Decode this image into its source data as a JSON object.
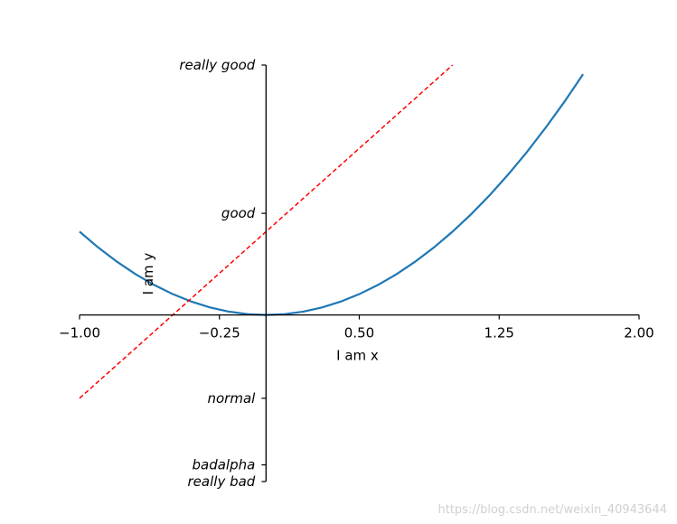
{
  "chart_data": {
    "type": "line",
    "xlim": [
      -1,
      2
    ],
    "ylim": [
      -2,
      3
    ],
    "x_ticks": [
      -1.0,
      -0.25,
      0.5,
      1.25,
      2.0
    ],
    "x_tick_labels": [
      "−1.00",
      "−0.25",
      "0.50",
      "1.25",
      "2.00"
    ],
    "y_ticks": [
      -2,
      -1.8,
      -1,
      1.22,
      3
    ],
    "y_tick_labels": [
      "really bad",
      "badalpha",
      "normal",
      "good",
      "really good"
    ],
    "xlabel": "I am x",
    "ylabel": "I am y",
    "spines": [
      "bottom-at-y0",
      "left-at-x0"
    ],
    "series": [
      {
        "color": "#1f77b4",
        "style": "solid",
        "x": [
          -1.0,
          -0.9,
          -0.8,
          -0.7,
          -0.6,
          -0.5,
          -0.4,
          -0.3,
          -0.2,
          -0.1,
          0.0,
          0.1,
          0.2,
          0.3,
          0.4,
          0.5,
          0.6,
          0.7,
          0.8,
          0.9,
          1.0,
          1.1,
          1.2,
          1.3,
          1.4,
          1.5,
          1.6,
          1.7
        ],
        "y": [
          1.0,
          0.81,
          0.64,
          0.49,
          0.36,
          0.25,
          0.16,
          0.09,
          0.04,
          0.01,
          0.0,
          0.01,
          0.04,
          0.09,
          0.16,
          0.25,
          0.36,
          0.49,
          0.64,
          0.81,
          1.0,
          1.21,
          1.44,
          1.69,
          1.96,
          2.25,
          2.56,
          2.89
        ]
      },
      {
        "color": "#ff0000",
        "style": "dashed",
        "x": [
          -1.0,
          1.0
        ],
        "y": [
          -1.0,
          3.0
        ]
      }
    ]
  },
  "watermark": "https://blog.csdn.net/weixin_40943644"
}
